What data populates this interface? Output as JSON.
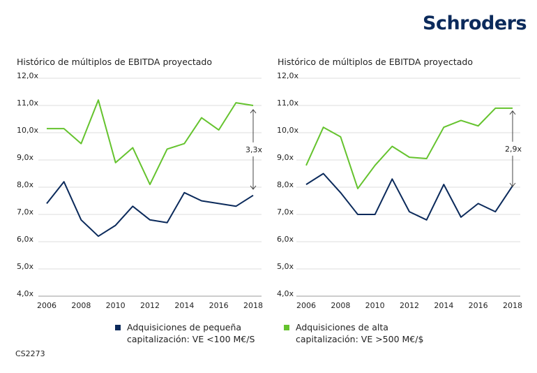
{
  "logo": "Schroders",
  "footer_code": "CS2273",
  "colors": {
    "small": "#0b2a5b",
    "large": "#65c32e",
    "grid": "#dddddd"
  },
  "legend": [
    {
      "label": "Adquisiciones de pequeña capitalización: VE <100 M€/S",
      "color": "#0b2a5b"
    },
    {
      "label": "Adquisiciones de alta capitalización: VE >500 M€/$",
      "color": "#65c32e"
    }
  ],
  "chart_data": [
    {
      "type": "line",
      "title": "Histórico de múltiplos de EBITDA proyectado",
      "x": [
        2006,
        2007,
        2008,
        2009,
        2010,
        2011,
        2012,
        2013,
        2014,
        2015,
        2016,
        2017,
        2018
      ],
      "x_tick_labels": [
        "2006",
        "2008",
        "2010",
        "2012",
        "2014",
        "2016",
        "2018"
      ],
      "y_tick_labels": [
        "4,0x",
        "5,0x",
        "6,0x",
        "7,0x",
        "8,0x",
        "9,0x",
        "10,0x",
        "11,0x",
        "12,0x"
      ],
      "ylim": [
        4,
        12
      ],
      "grid": true,
      "series": [
        {
          "key": "small",
          "values": [
            7.4,
            8.2,
            6.8,
            6.2,
            6.6,
            7.3,
            6.8,
            6.7,
            7.8,
            7.5,
            7.4,
            7.3,
            7.7
          ]
        },
        {
          "key": "large",
          "values": [
            10.15,
            10.15,
            9.6,
            11.2,
            8.9,
            9.45,
            8.1,
            9.4,
            9.6,
            10.55,
            10.1,
            11.1,
            11.0
          ]
        }
      ],
      "annotation": {
        "label": "3,3x",
        "x": 2018,
        "from": 7.9,
        "to": 10.9
      }
    },
    {
      "type": "line",
      "title": "Histórico de múltiplos de EBITDA proyectado",
      "x": [
        2006,
        2007,
        2008,
        2009,
        2010,
        2011,
        2012,
        2013,
        2014,
        2015,
        2016,
        2017,
        2018
      ],
      "x_tick_labels": [
        "2006",
        "2008",
        "2010",
        "2012",
        "2014",
        "2016",
        "2018"
      ],
      "y_tick_labels": [
        "4,0x",
        "5,0x",
        "6,0x",
        "7,0x",
        "8,0x",
        "9,0x",
        "10,0x",
        "11,0x",
        "12,0x"
      ],
      "ylim": [
        4,
        12
      ],
      "grid": true,
      "series": [
        {
          "key": "small",
          "values": [
            8.1,
            8.5,
            7.8,
            7.0,
            7.0,
            8.3,
            7.1,
            6.8,
            8.1,
            6.9,
            7.4,
            7.1,
            8.05
          ]
        },
        {
          "key": "large",
          "values": [
            8.8,
            10.2,
            9.85,
            7.95,
            8.8,
            9.5,
            9.1,
            9.05,
            10.2,
            10.45,
            10.25,
            10.9,
            10.9
          ]
        }
      ],
      "annotation": {
        "label": "2,9x",
        "x": 2018,
        "from": 8.0,
        "to": 10.85
      }
    }
  ]
}
